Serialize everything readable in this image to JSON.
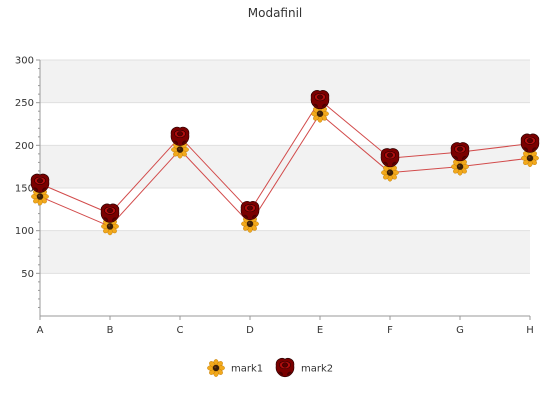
{
  "chart_data": {
    "type": "line",
    "title": "Modafinil",
    "xlabel": "",
    "ylabel": "",
    "categories": [
      "A",
      "B",
      "C",
      "D",
      "E",
      "F",
      "G",
      "H"
    ],
    "yticks": [
      50,
      100,
      150,
      200,
      250,
      300
    ],
    "ylim": [
      0,
      300
    ],
    "grid": true,
    "legend_position": "bottom",
    "series": [
      {
        "name": "mark1",
        "values": [
          140,
          105,
          195,
          108,
          237,
          168,
          175,
          185
        ],
        "marker": "sunflower-icon",
        "color": "#f0a818"
      },
      {
        "name": "mark2",
        "values": [
          155,
          120,
          210,
          123,
          253,
          185,
          192,
          202
        ],
        "marker": "rose-icon",
        "color": "#8b0000"
      }
    ],
    "line_color": "#d24b4b",
    "band_color": "#f2f2f2"
  }
}
